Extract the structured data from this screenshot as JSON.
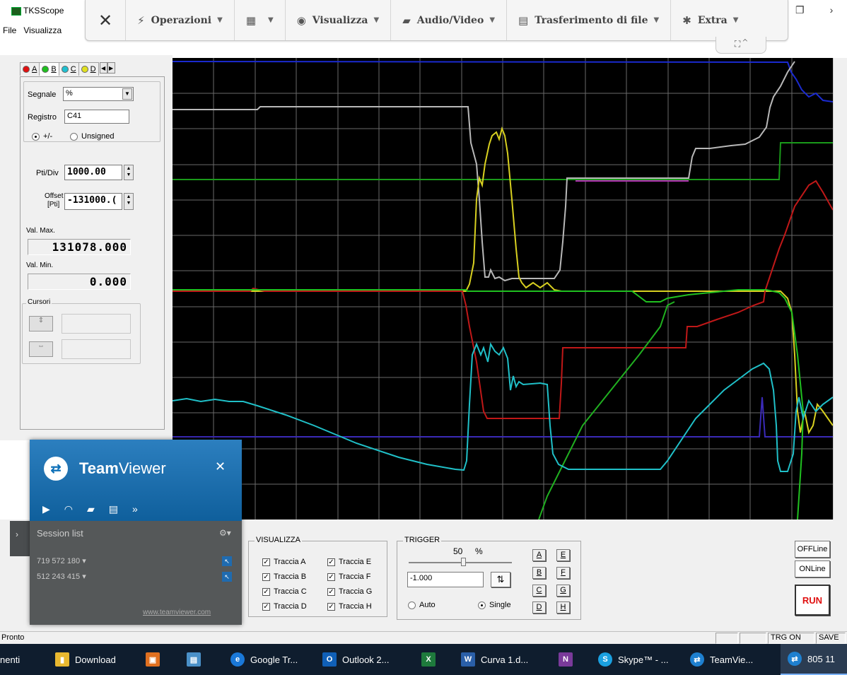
{
  "app": {
    "title": "TKSScope",
    "menu": [
      "File",
      "Visualizza"
    ]
  },
  "tv_toolbar": {
    "close": "✕",
    "items": [
      {
        "icon": "⚡",
        "label": "Operazioni"
      },
      {
        "icon": "▦",
        "label": ""
      },
      {
        "icon": "◉",
        "label": "Visualizza"
      },
      {
        "icon": "▰",
        "label": "Audio/Video"
      },
      {
        "icon": "▤",
        "label": "Trasferimento di file"
      },
      {
        "icon": "✱",
        "label": "Extra"
      }
    ],
    "tab_label": "⛶ ⌃"
  },
  "window_controls": [
    "❐",
    "›"
  ],
  "channel_tabs": [
    {
      "letter": "A",
      "color": "#e01010"
    },
    {
      "letter": "B",
      "color": "#20c020"
    },
    {
      "letter": "C",
      "color": "#20c0d0"
    },
    {
      "letter": "D",
      "color": "#e0e020"
    }
  ],
  "channel": {
    "signal_label": "Segnale",
    "signal_value": "%",
    "register_label": "Registro",
    "register_value": "C41",
    "sign_options": [
      "+/-",
      "Unsigned"
    ],
    "pts_div_label": "Pti/Div",
    "pts_div_value": "1000.00",
    "offset_label_1": "Offset",
    "offset_label_2": "[Pti]",
    "offset_value": "-131000.(",
    "max_label": "Val. Max.",
    "max_value": "131078.000",
    "min_label": "Val. Min.",
    "min_value": "0.000",
    "cursors_label": "Cursori"
  },
  "visualizza": {
    "title": "VISUALIZZA",
    "traces": [
      "Traccia A",
      "Traccia B",
      "Traccia C",
      "Traccia D",
      "Traccia E",
      "Traccia F",
      "Traccia G",
      "Traccia H"
    ],
    "checked": [
      true,
      true,
      true,
      true,
      true,
      true,
      true,
      true
    ]
  },
  "trigger": {
    "title": "TRIGGER",
    "percent_value": "50",
    "percent_unit": "%",
    "level_value": "-1.000",
    "edge_button": "⇅",
    "mode_auto": "Auto",
    "mode_single": "Single",
    "selected_mode": "Single",
    "channel_buttons": [
      "A",
      "E",
      "B",
      "F",
      "C",
      "G",
      "D",
      "H"
    ]
  },
  "side_buttons": {
    "offline": "OFFLine",
    "online": "ONLine",
    "run": "RUN"
  },
  "status": {
    "text": "Pronto",
    "cells": [
      "",
      "",
      "TRG ON",
      "SAVE"
    ]
  },
  "taskbar": [
    {
      "label": "nenti",
      "icon": "",
      "color": ""
    },
    {
      "label": "Download",
      "icon": "▮",
      "color": "#e8b830"
    },
    {
      "label": "",
      "icon": "▣",
      "color": "#e07020"
    },
    {
      "label": "",
      "icon": "▤",
      "color": "#4a90c8"
    },
    {
      "label": "Google Tr...",
      "icon": "e",
      "color": "#1a78d8"
    },
    {
      "label": "Outlook 2...",
      "icon": "O",
      "color": "#1060b8"
    },
    {
      "label": "",
      "icon": "X",
      "color": "#1e7a3c"
    },
    {
      "label": "Curva 1.d...",
      "icon": "W",
      "color": "#2a5fa8"
    },
    {
      "label": "",
      "icon": "N",
      "color": "#7a3a9a"
    },
    {
      "label": "Skype™ - ...",
      "icon": "S",
      "color": "#1aa0e0"
    },
    {
      "label": "TeamVie...",
      "icon": "⇄",
      "color": "#1e80d0"
    },
    {
      "label": "805 11",
      "icon": "⇄",
      "color": "#1e80d0"
    }
  ],
  "teamviewer": {
    "name_bold": "Team",
    "name_regular": "Viewer",
    "close": "✕",
    "icons": [
      "▶",
      "◠",
      "▰",
      "▤",
      "»"
    ],
    "session_list_label": "Session list",
    "sessions": [
      "719 572 180 ▾",
      "512 243 415 ▾"
    ],
    "website": "www.teamviewer.com",
    "side_arrow": "›"
  }
}
